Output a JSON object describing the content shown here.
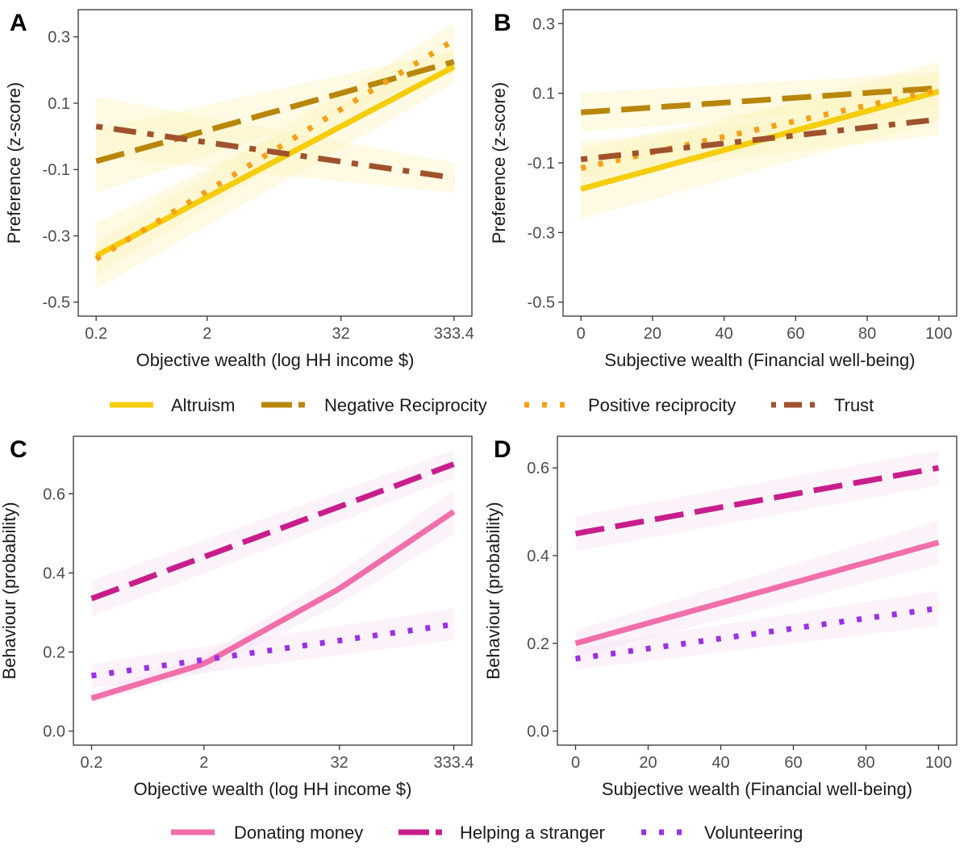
{
  "chart_data": [
    {
      "panel": "A",
      "type": "line",
      "xlabel": "Objective wealth (log HH income $)",
      "ylabel": "Preference (z-score)",
      "x_scale": "log",
      "xlim": [
        0.2,
        333.4
      ],
      "ylim": [
        -0.5,
        0.3
      ],
      "x_ticks": [
        0.2,
        2,
        32,
        333.4
      ],
      "x_tick_labels": [
        "0.2",
        "2",
        "32",
        "333.4"
      ],
      "y_ticks": [
        -0.5,
        -0.3,
        -0.1,
        0.1,
        0.3
      ],
      "y_tick_labels": [
        "-0.5",
        "-0.3",
        "-0.1",
        "0.1",
        "0.3"
      ],
      "series": [
        {
          "name": "Altruism",
          "x": [
            0.2,
            333.4
          ],
          "y": [
            -0.36,
            0.21
          ],
          "lower": [
            -0.46,
            0.16
          ],
          "upper": [
            -0.26,
            0.26
          ]
        },
        {
          "name": "Negative Reciprocity",
          "x": [
            0.2,
            333.4
          ],
          "y": [
            -0.075,
            0.225
          ],
          "lower": [
            -0.17,
            0.19
          ],
          "upper": [
            0.02,
            0.26
          ]
        },
        {
          "name": "Positive reciprocity",
          "x": [
            0.2,
            333.4
          ],
          "y": [
            -0.37,
            0.29
          ],
          "lower": [
            -0.42,
            0.24
          ],
          "upper": [
            -0.32,
            0.34
          ]
        },
        {
          "name": "Trust",
          "x": [
            0.2,
            333.4
          ],
          "y": [
            0.03,
            -0.125
          ],
          "lower": [
            -0.06,
            -0.17
          ],
          "upper": [
            0.12,
            -0.08
          ]
        }
      ],
      "grid": false
    },
    {
      "panel": "B",
      "type": "line",
      "xlabel": "Subjective wealth (Financial well-being)",
      "ylabel": "Preference (z-score)",
      "xlim": [
        0,
        100
      ],
      "ylim": [
        -0.5,
        0.3
      ],
      "x_ticks": [
        0,
        20,
        40,
        60,
        80,
        100
      ],
      "x_tick_labels": [
        "0",
        "20",
        "40",
        "60",
        "80",
        "100"
      ],
      "y_ticks": [
        -0.5,
        -0.3,
        -0.1,
        0.1,
        0.3
      ],
      "y_tick_labels": [
        "-0.5",
        "-0.3",
        "-0.1",
        "0.1",
        "0.3"
      ],
      "series": [
        {
          "name": "Altruism",
          "x": [
            0,
            100
          ],
          "y": [
            -0.175,
            0.105
          ],
          "lower": [
            -0.26,
            0.02
          ],
          "upper": [
            -0.09,
            0.19
          ]
        },
        {
          "name": "Negative Reciprocity",
          "x": [
            0,
            100
          ],
          "y": [
            0.045,
            0.115
          ],
          "lower": [
            -0.01,
            0.07
          ],
          "upper": [
            0.1,
            0.16
          ]
        },
        {
          "name": "Positive reciprocity",
          "x": [
            0,
            100
          ],
          "y": [
            -0.115,
            0.11
          ],
          "lower": [
            -0.17,
            0.06
          ],
          "upper": [
            -0.06,
            0.16
          ]
        },
        {
          "name": "Trust",
          "x": [
            0,
            100
          ],
          "y": [
            -0.09,
            0.025
          ],
          "lower": [
            -0.14,
            -0.02
          ],
          "upper": [
            -0.04,
            0.07
          ]
        }
      ],
      "grid": false
    },
    {
      "panel": "C",
      "type": "line",
      "xlabel": "Objective wealth (log HH income $)",
      "ylabel": "Behaviour (probability)",
      "x_scale": "log",
      "xlim": [
        0.2,
        333.4
      ],
      "ylim": [
        0.0,
        0.6
      ],
      "x_ticks": [
        0.2,
        2,
        32,
        333.4
      ],
      "x_tick_labels": [
        "0.2",
        "2",
        "32",
        "333.4"
      ],
      "y_ticks": [
        0.0,
        0.2,
        0.4,
        0.6
      ],
      "y_tick_labels": [
        "0.0",
        "0.2",
        "0.4",
        "0.6"
      ],
      "series": [
        {
          "name": "Donating money",
          "x": [
            0.2,
            2,
            32,
            333.4
          ],
          "y": [
            0.083,
            0.17,
            0.36,
            0.555
          ],
          "lower": [
            0.07,
            0.15,
            0.32,
            0.5
          ],
          "upper": [
            0.1,
            0.19,
            0.4,
            0.61
          ]
        },
        {
          "name": "Helping a stranger",
          "x": [
            0.2,
            333.4
          ],
          "y": [
            0.335,
            0.675
          ],
          "lower": [
            0.29,
            0.64
          ],
          "upper": [
            0.38,
            0.71
          ]
        },
        {
          "name": "Volunteering",
          "x": [
            0.2,
            333.4
          ],
          "y": [
            0.14,
            0.27
          ],
          "lower": [
            0.11,
            0.23
          ],
          "upper": [
            0.17,
            0.31
          ]
        }
      ],
      "grid": false
    },
    {
      "panel": "D",
      "type": "line",
      "xlabel": "Subjective wealth (Financial well-being)",
      "ylabel": "Behaviour (probability)",
      "xlim": [
        0,
        100
      ],
      "ylim": [
        0.0,
        0.6
      ],
      "x_ticks": [
        0,
        20,
        40,
        60,
        80,
        100
      ],
      "x_tick_labels": [
        "0",
        "20",
        "40",
        "60",
        "80",
        "100"
      ],
      "y_ticks": [
        0.0,
        0.2,
        0.4,
        0.6
      ],
      "y_tick_labels": [
        "0.0",
        "0.2",
        "0.4",
        "0.6"
      ],
      "series": [
        {
          "name": "Donating money",
          "x": [
            0,
            100
          ],
          "y": [
            0.2,
            0.43
          ],
          "lower": [
            0.17,
            0.38
          ],
          "upper": [
            0.23,
            0.48
          ]
        },
        {
          "name": "Helping a stranger",
          "x": [
            0,
            100
          ],
          "y": [
            0.45,
            0.6
          ],
          "lower": [
            0.41,
            0.56
          ],
          "upper": [
            0.49,
            0.64
          ]
        },
        {
          "name": "Volunteering",
          "x": [
            0,
            100
          ],
          "y": [
            0.165,
            0.28
          ],
          "lower": [
            0.14,
            0.24
          ],
          "upper": [
            0.19,
            0.32
          ]
        }
      ],
      "grid": false
    }
  ],
  "legends": {
    "preferences": [
      {
        "label": "Altruism",
        "color": "#f5cd0a",
        "dash": "solid"
      },
      {
        "label": "Negative Reciprocity",
        "color": "#b8860b",
        "dash": "longdash"
      },
      {
        "label": "Positive reciprocity",
        "color": "#f5a016",
        "dash": "dotted"
      },
      {
        "label": "Trust",
        "color": "#a0522d",
        "dash": "dotdash"
      }
    ],
    "behaviours": [
      {
        "label": "Donating money",
        "color": "#f06eaa",
        "dash": "solid"
      },
      {
        "label": "Helping a stranger",
        "color": "#c81e8c",
        "dash": "longdash"
      },
      {
        "label": "Volunteering",
        "color": "#9b30e6",
        "dash": "dotted"
      }
    ],
    "placement": "bottom"
  },
  "ribbons": {
    "preferences": "#fcf3c2",
    "behaviours": "#f7e3f5"
  }
}
